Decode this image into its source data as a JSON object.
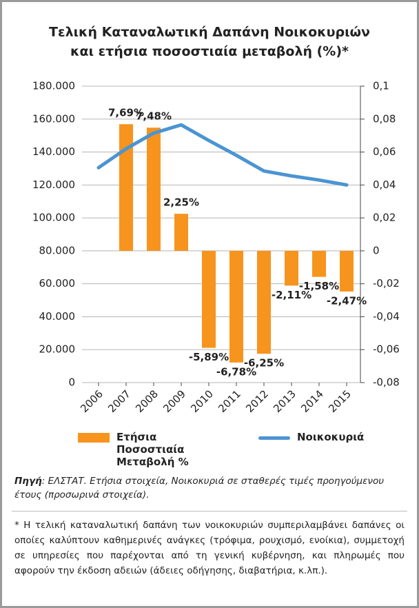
{
  "chart_data": {
    "type": "bar",
    "title": [
      "Τελική Καταναλωτική Δαπάνη Νοικοκυριών",
      "και ετήσια ποσοστιαία μεταβολή (%)*"
    ],
    "categories": [
      "2006",
      "2007",
      "2008",
      "2009",
      "2010",
      "2011",
      "2012",
      "2013",
      "2014",
      "2015"
    ],
    "series": [
      {
        "name": "Ετήσια Ποσοστιαία Μεταβολή %",
        "type": "bar",
        "axis": "y2",
        "color": "#f7941d",
        "values": [
          null,
          0.0769,
          0.0748,
          0.0225,
          -0.0589,
          -0.0678,
          -0.0625,
          -0.0211,
          -0.0158,
          -0.0247
        ],
        "value_labels": [
          null,
          "7,69%",
          "7,48%",
          "2,25%",
          "-5,89%",
          "-6,78%",
          "-6,25%",
          "-2,11%",
          "-1,58%",
          "-2,47%"
        ]
      },
      {
        "name": "Νοικοκυριά",
        "type": "line",
        "color": "#4b94d2",
        "values": [
          130500,
          142000,
          151500,
          156500,
          147000,
          138000,
          128500,
          125500,
          123000,
          120000
        ]
      }
    ],
    "ylim": [
      0,
      180000
    ],
    "yticks": [
      0,
      {
        "value": 20000,
        "label": "20.000"
      },
      {
        "value": 40000,
        "label": "40.000"
      },
      {
        "value": 60000,
        "label": "60.000"
      },
      {
        "value": 80000,
        "label": "80.000"
      },
      {
        "value": 100000,
        "label": "100.000"
      },
      {
        "value": 120000,
        "label": "120.000"
      },
      {
        "value": 140000,
        "label": "140.000"
      },
      {
        "value": 160000,
        "label": "160.000"
      },
      {
        "value": 180000,
        "label": "180.000"
      }
    ],
    "y2lim": [
      -0.08,
      0.1
    ],
    "y2ticks": [
      {
        "value": -0.08,
        "label": "-0,08"
      },
      {
        "value": -0.06,
        "label": "-0,06"
      },
      {
        "value": -0.04,
        "label": "-0,04"
      },
      {
        "value": -0.02,
        "label": "-0,02"
      },
      0,
      {
        "value": 0.02,
        "label": "0,02"
      },
      {
        "value": 0.04,
        "label": "0,04"
      },
      {
        "value": 0.06,
        "label": "0,06"
      },
      {
        "value": 0.08,
        "label": "0,08"
      },
      {
        "value": 0.1,
        "label": "0,1"
      }
    ],
    "grid": true
  },
  "source": {
    "label": "Πηγή",
    "text": ": ΕΛΣΤΑΤ. Ετήσια στοιχεία, Νοικοκυριά σε σταθερές τιμές προηγούμενου έτους (προσωρινά στοιχεία)."
  },
  "footnote": "* Η τελική καταναλωτική δαπάνη των νοικοκυριών συμπεριλαμβάνει δαπάνες οι οποίες καλύπτουν καθημερινές ανάγκες (τρόφιμα, ρουχισμό, ενοίκια), συμμετοχή σε υπηρεσίες που παρέχονται από τη γενική κυβέρνηση, και πληρωμές που αφορούν την έκδοση αδειών (άδειες οδήγησης, διαβατήρια, κ.λπ.)."
}
